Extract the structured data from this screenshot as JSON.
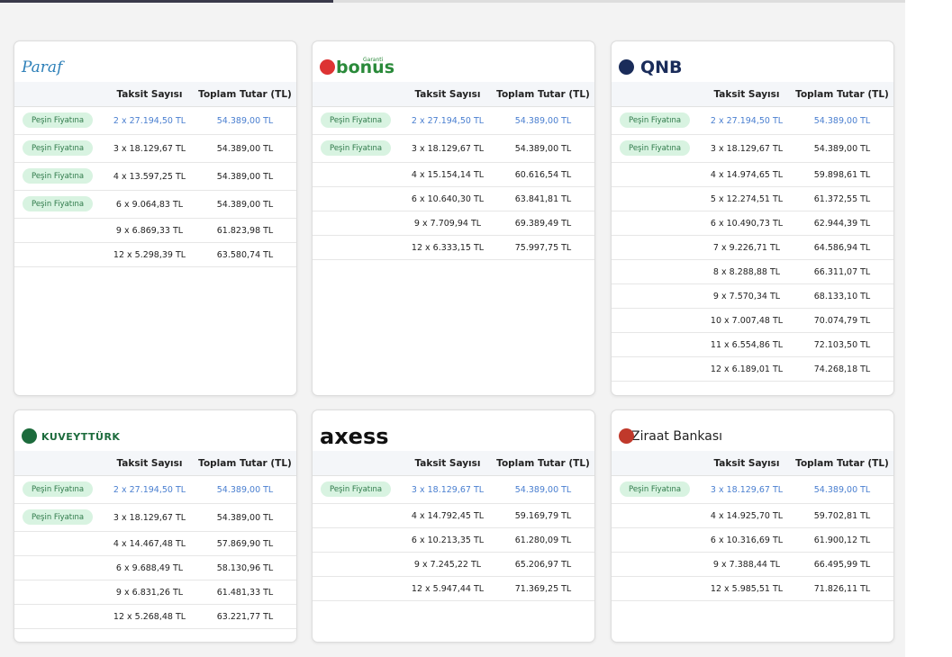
{
  "table_headers": [
    "Taksit Sayısı",
    "Toplam Tutar (TL)"
  ],
  "cards": [
    {
      "logo": [
        "Paraf"
      ],
      "rows": [
        {
          "badge": "Peşin Fiyatına",
          "installment": "2 x 27.194,50 TL",
          "total": "54.389,00 TL"
        },
        {
          "badge": "Peşin Fiyatına",
          "installment": "3 x 18.129,67 TL",
          "total": "54.389,00 TL"
        },
        {
          "badge": "Peşin Fiyatına",
          "installment": "4 x 13.597,25 TL",
          "total": "54.389,00 TL"
        },
        {
          "badge": "Peşin Fiyatına",
          "installment": "6 x 9.064,83 TL",
          "total": "54.389,00 TL"
        },
        {
          "installment": "9 x 6.869,33 TL",
          "total": "61.823,98 TL"
        },
        {
          "installment": "12 x 5.298,39 TL",
          "total": "63.580,74 TL"
        }
      ]
    },
    {
      "logo": [
        "Garanti",
        "bonus"
      ],
      "rows": [
        {
          "badge": "Peşin Fiyatına",
          "installment": "2 x 27.194,50 TL",
          "total": "54.389,00 TL"
        },
        {
          "badge": "Peşin Fiyatına",
          "installment": "3 x 18.129,67 TL",
          "total": "54.389,00 TL"
        },
        {
          "installment": "4 x 15.154,14 TL",
          "total": "60.616,54 TL"
        },
        {
          "installment": "6 x 10.640,30 TL",
          "total": "63.841,81 TL"
        },
        {
          "installment": "9 x 7.709,94 TL",
          "total": "69.389,49 TL"
        },
        {
          "installment": "12 x 6.333,15 TL",
          "total": "75.997,75 TL"
        }
      ]
    },
    {
      "logo": [
        "QNB"
      ],
      "rows": [
        {
          "badge": "Peşin Fiyatına",
          "installment": "2 x 27.194,50 TL",
          "total": "54.389,00 TL"
        },
        {
          "badge": "Peşin Fiyatına",
          "installment": "3 x 18.129,67 TL",
          "total": "54.389,00 TL"
        },
        {
          "installment": "4 x 14.974,65 TL",
          "total": "59.898,61 TL"
        },
        {
          "installment": "5 x 12.274,51 TL",
          "total": "61.372,55 TL"
        },
        {
          "installment": "6 x 10.490,73 TL",
          "total": "62.944,39 TL"
        },
        {
          "installment": "7 x 9.226,71 TL",
          "total": "64.586,94 TL"
        },
        {
          "installment": "8 x 8.288,88 TL",
          "total": "66.311,07 TL"
        },
        {
          "installment": "9 x 7.570,34 TL",
          "total": "68.133,10 TL"
        },
        {
          "installment": "10 x 7.007,48 TL",
          "total": "70.074,79 TL"
        },
        {
          "installment": "11 x 6.554,86 TL",
          "total": "72.103,50 TL"
        },
        {
          "installment": "12 x 6.189,01 TL",
          "total": "74.268,18 TL"
        }
      ]
    },
    {
      "logo": [
        "KUVEYTTÜRK"
      ],
      "rows": [
        {
          "badge": "Peşin Fiyatına",
          "installment": "2 x 27.194,50 TL",
          "total": "54.389,00 TL"
        },
        {
          "badge": "Peşin Fiyatına",
          "installment": "3 x 18.129,67 TL",
          "total": "54.389,00 TL"
        },
        {
          "installment": "4 x 14.467,48 TL",
          "total": "57.869,90 TL"
        },
        {
          "installment": "6 x 9.688,49 TL",
          "total": "58.130,96 TL"
        },
        {
          "installment": "9 x 6.831,26 TL",
          "total": "61.481,33 TL"
        },
        {
          "installment": "12 x 5.268,48 TL",
          "total": "63.221,77 TL"
        }
      ]
    },
    {
      "logo": [
        "axess"
      ],
      "rows": [
        {
          "badge": "Peşin Fiyatına",
          "installment": "3 x 18.129,67 TL",
          "total": "54.389,00 TL"
        },
        {
          "installment": "4 x 14.792,45 TL",
          "total": "59.169,79 TL"
        },
        {
          "installment": "6 x 10.213,35 TL",
          "total": "61.280,09 TL"
        },
        {
          "installment": "9 x 7.245,22 TL",
          "total": "65.206,97 TL"
        },
        {
          "installment": "12 x 5.947,44 TL",
          "total": "71.369,25 TL"
        }
      ]
    },
    {
      "logo": [
        "Ziraat Bankası"
      ],
      "rows": [
        {
          "badge": "Peşin Fiyatına",
          "installment": "3 x 18.129,67 TL",
          "total": "54.389,00 TL"
        },
        {
          "installment": "4 x 14.925,70 TL",
          "total": "59.702,81 TL"
        },
        {
          "installment": "6 x 10.316,69 TL",
          "total": "61.900,12 TL"
        },
        {
          "installment": "9 x 7.388,44 TL",
          "total": "66.495,99 TL"
        },
        {
          "installment": "12 x 5.985,51 TL",
          "total": "71.826,11 TL"
        }
      ]
    }
  ]
}
